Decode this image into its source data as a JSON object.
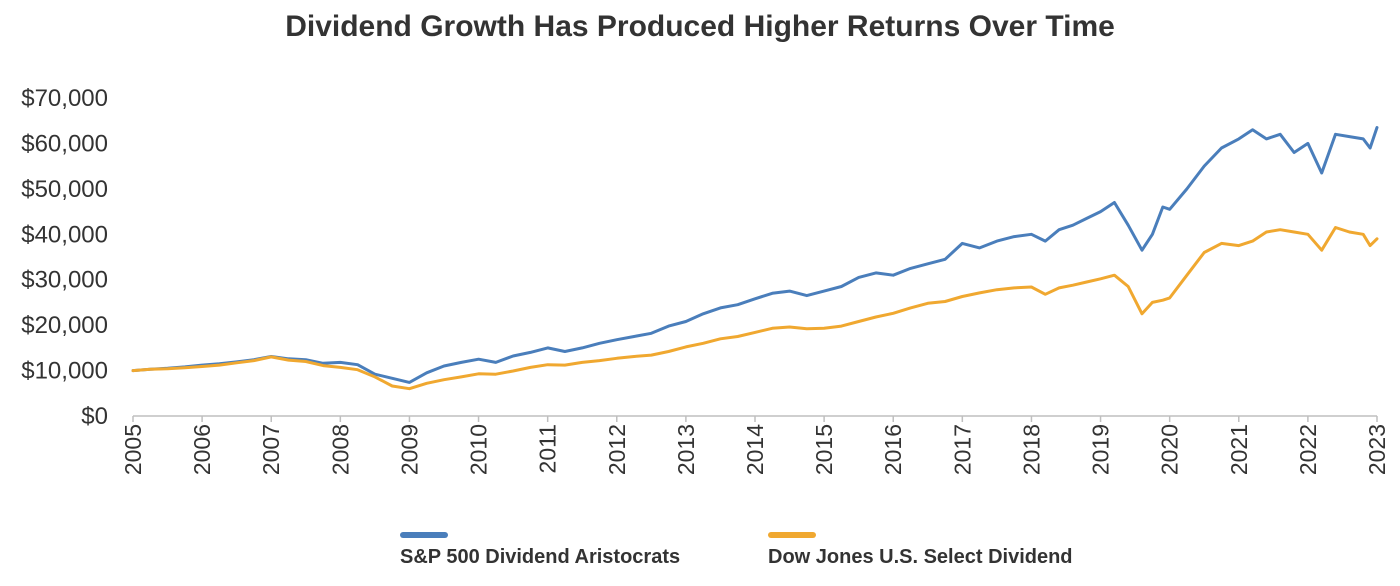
{
  "chart_data": {
    "type": "line",
    "title": "Dividend Growth Has Produced Higher Returns Over Time",
    "xlabel": "",
    "ylabel": "",
    "xlim": [
      2005,
      2023
    ],
    "ylim": [
      0,
      70000
    ],
    "y_ticks": [
      {
        "value": 0,
        "label": "$0"
      },
      {
        "value": 10000,
        "label": "$10,000"
      },
      {
        "value": 20000,
        "label": "$20,000"
      },
      {
        "value": 30000,
        "label": "$30,000"
      },
      {
        "value": 40000,
        "label": "$40,000"
      },
      {
        "value": 50000,
        "label": "$50,000"
      },
      {
        "value": 60000,
        "label": "$60,000"
      },
      {
        "value": 70000,
        "label": "$70,000"
      }
    ],
    "x_ticks": [
      "2005",
      "2006",
      "2007",
      "2008",
      "2009",
      "2010",
      "2011",
      "2012",
      "2013",
      "2014",
      "2015",
      "2016",
      "2017",
      "2018",
      "2019",
      "2020",
      "2021",
      "2022",
      "2023"
    ],
    "grid": false,
    "legend_position": "bottom",
    "series": [
      {
        "name": "S&P 500 Dividend Aristocrats",
        "color": "#4a7ebb",
        "x": [
          2005.0,
          2005.25,
          2005.5,
          2005.75,
          2006.0,
          2006.25,
          2006.5,
          2006.75,
          2007.0,
          2007.25,
          2007.5,
          2007.75,
          2008.0,
          2008.25,
          2008.5,
          2008.75,
          2009.0,
          2009.25,
          2009.5,
          2009.75,
          2010.0,
          2010.25,
          2010.5,
          2010.75,
          2011.0,
          2011.25,
          2011.5,
          2011.75,
          2012.0,
          2012.25,
          2012.5,
          2012.75,
          2013.0,
          2013.25,
          2013.5,
          2013.75,
          2014.0,
          2014.25,
          2014.5,
          2014.75,
          2015.0,
          2015.25,
          2015.5,
          2015.75,
          2016.0,
          2016.25,
          2016.5,
          2016.75,
          2017.0,
          2017.25,
          2017.5,
          2017.75,
          2018.0,
          2018.2,
          2018.4,
          2018.6,
          2018.8,
          2019.0,
          2019.2,
          2019.4,
          2019.6,
          2019.75,
          2019.9,
          2020.0,
          2020.25,
          2020.5,
          2020.75,
          2021.0,
          2021.2,
          2021.4,
          2021.6,
          2021.8,
          2022.0,
          2022.2,
          2022.4,
          2022.6,
          2022.8,
          2022.9,
          2023.0
        ],
        "values": [
          10000,
          10300,
          10500,
          10800,
          11200,
          11500,
          11900,
          12400,
          13100,
          12600,
          12400,
          11600,
          11800,
          11300,
          9200,
          8300,
          7400,
          9500,
          11000,
          11800,
          12500,
          11800,
          13200,
          14000,
          15000,
          14200,
          15000,
          16000,
          16800,
          17500,
          18200,
          19800,
          20800,
          22500,
          23800,
          24500,
          25800,
          27000,
          27500,
          26500,
          27500,
          28500,
          30500,
          31500,
          31000,
          32500,
          33500,
          34500,
          38000,
          37000,
          38500,
          39500,
          40000,
          38500,
          41000,
          42000,
          43500,
          45000,
          47000,
          42000,
          36500,
          40000,
          46000,
          45500,
          50000,
          55000,
          59000,
          61000,
          63000,
          61000,
          62000,
          58000,
          60000,
          53500,
          62000,
          61500,
          61000,
          59000,
          63500
        ]
      },
      {
        "name": "Dow Jones U.S. Select Dividend",
        "color": "#f0a830",
        "x": [
          2005.0,
          2005.25,
          2005.5,
          2005.75,
          2006.0,
          2006.25,
          2006.5,
          2006.75,
          2007.0,
          2007.25,
          2007.5,
          2007.75,
          2008.0,
          2008.25,
          2008.5,
          2008.75,
          2009.0,
          2009.25,
          2009.5,
          2009.75,
          2010.0,
          2010.25,
          2010.5,
          2010.75,
          2011.0,
          2011.25,
          2011.5,
          2011.75,
          2012.0,
          2012.25,
          2012.5,
          2012.75,
          2013.0,
          2013.25,
          2013.5,
          2013.75,
          2014.0,
          2014.25,
          2014.5,
          2014.75,
          2015.0,
          2015.25,
          2015.5,
          2015.75,
          2016.0,
          2016.25,
          2016.5,
          2016.75,
          2017.0,
          2017.25,
          2017.5,
          2017.75,
          2018.0,
          2018.2,
          2018.4,
          2018.6,
          2018.8,
          2019.0,
          2019.2,
          2019.4,
          2019.6,
          2019.75,
          2019.9,
          2020.0,
          2020.25,
          2020.5,
          2020.75,
          2021.0,
          2021.2,
          2021.4,
          2021.6,
          2021.8,
          2022.0,
          2022.2,
          2022.4,
          2022.6,
          2022.8,
          2022.9,
          2023.0
        ],
        "values": [
          10000,
          10300,
          10400,
          10600,
          10900,
          11200,
          11700,
          12200,
          13000,
          12300,
          12000,
          11100,
          10700,
          10200,
          8600,
          6600,
          6000,
          7200,
          8000,
          8600,
          9300,
          9200,
          9900,
          10700,
          11300,
          11200,
          11800,
          12200,
          12700,
          13100,
          13400,
          14200,
          15200,
          16000,
          17000,
          17500,
          18400,
          19300,
          19600,
          19200,
          19300,
          19800,
          20800,
          21800,
          22600,
          23800,
          24800,
          25200,
          26300,
          27100,
          27800,
          28200,
          28400,
          26800,
          28200,
          28800,
          29500,
          30200,
          31000,
          28500,
          22500,
          25000,
          25500,
          26000,
          31000,
          36000,
          38000,
          37500,
          38500,
          40500,
          41000,
          40500,
          40000,
          36500,
          41500,
          40500,
          40000,
          37500,
          39000
        ]
      }
    ]
  }
}
